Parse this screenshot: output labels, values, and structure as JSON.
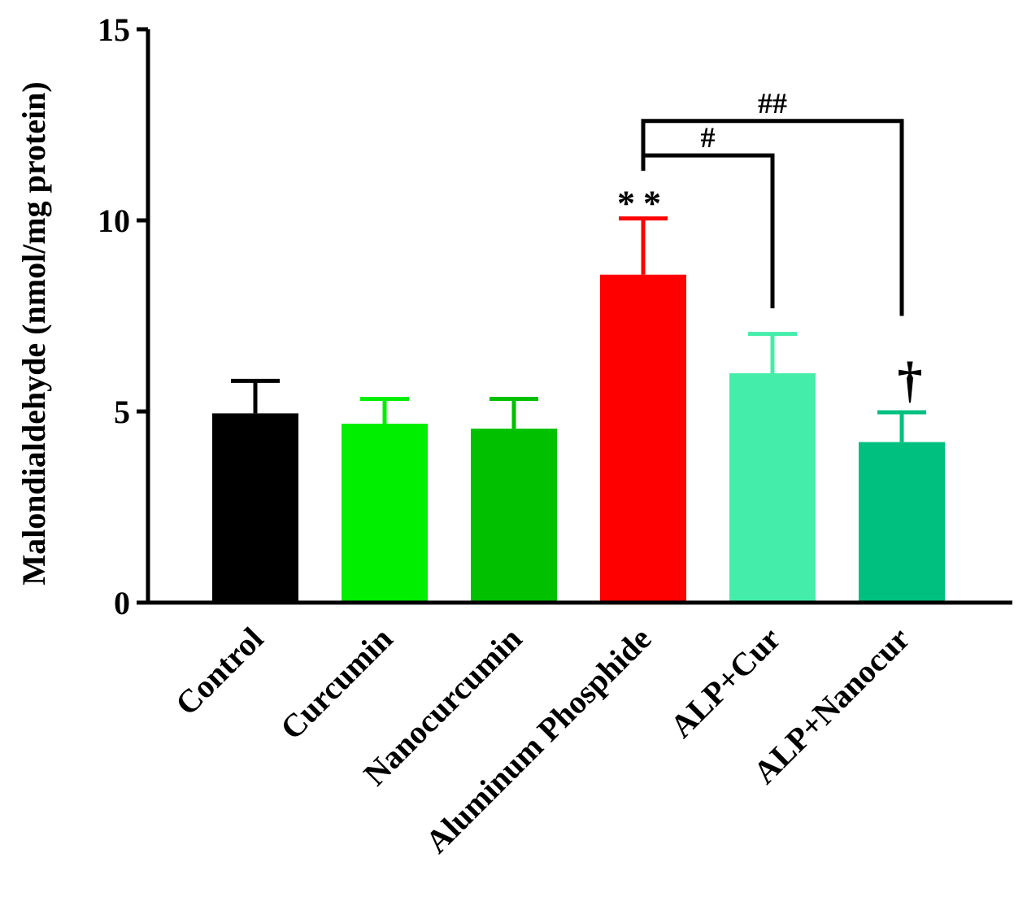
{
  "chart_data": {
    "type": "bar",
    "title": "",
    "xlabel": "",
    "ylabel": "Malondialdehyde (nmol/mg protein)",
    "ylim": [
      0,
      15
    ],
    "yticks": [
      0,
      5,
      10,
      15
    ],
    "categories": [
      "Control",
      "Curcumin",
      "Nanocurcumin",
      "Aluminum Phosphide",
      "ALP+Cur",
      "ALP+Nanocur"
    ],
    "values": [
      4.95,
      4.68,
      4.55,
      8.58,
      6.0,
      4.2
    ],
    "errors": [
      0.85,
      0.65,
      0.78,
      1.47,
      1.03,
      0.78
    ],
    "colors": [
      "#000000",
      "#00ee00",
      "#00c000",
      "#ff0000",
      "#44eeaa",
      "#00c080"
    ],
    "annotations": {
      "stars": {
        "category": "Aluminum Phosphide",
        "text": "**",
        "color": "#000000"
      },
      "dagger": {
        "category": "ALP+Nanocur",
        "text": "†"
      },
      "bracket1": {
        "from": "Aluminum Phosphide",
        "to": "ALP+Cur",
        "label": "#",
        "y": 11.7,
        "end_y": 7.7
      },
      "bracket2": {
        "from": "Aluminum Phosphide",
        "to": "ALP+Nanocur",
        "label": "##",
        "y": 12.6,
        "end_y": 7.5
      }
    }
  }
}
